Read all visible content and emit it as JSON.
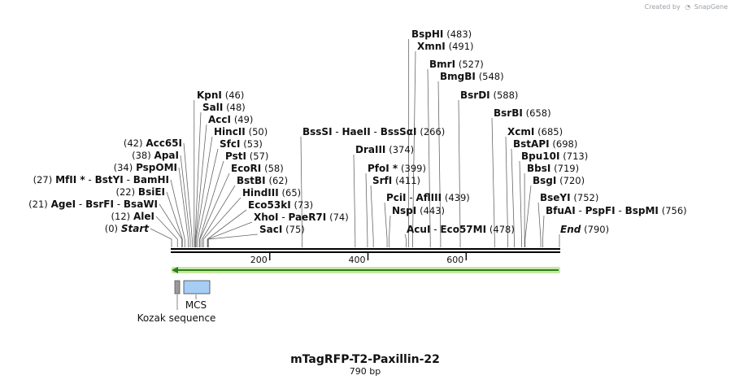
{
  "credit": {
    "prefix": "Created by",
    "brand": "SnapGene"
  },
  "plasmid": {
    "name": "mTagRFP-T2-Paxillin-22",
    "length_label": "790 bp",
    "length": 790
  },
  "colors": {
    "backbone": "#000000",
    "feature_arrow": "#2e7d1f",
    "feature_glow": "#c8e8a0",
    "kozak": "#999999",
    "mcs": "#a6cef5"
  },
  "ticks": [
    {
      "value": 200,
      "label": "200"
    },
    {
      "value": 400,
      "label": "400"
    },
    {
      "value": 600,
      "label": "600"
    }
  ],
  "features": [
    {
      "name": "Kozak sequence",
      "start": 1,
      "end": 10
    },
    {
      "name": "MCS",
      "start": 12,
      "end": 75
    }
  ],
  "left_sites": [
    {
      "parts": [
        "Start"
      ],
      "pos": 0,
      "pos_label": "(0)",
      "italic": true
    },
    {
      "parts": [
        "AleI"
      ],
      "pos": 12,
      "pos_label": "(12)"
    },
    {
      "parts": [
        "AgeI",
        "BsrFI",
        "BsaWI"
      ],
      "pos": 21,
      "pos_label": "(21)"
    },
    {
      "parts": [
        "BsiEI"
      ],
      "pos": 22,
      "pos_label": "(22)"
    },
    {
      "parts": [
        "MfII *",
        "BstYI",
        "BamHI"
      ],
      "pos": 27,
      "pos_label": "(27)"
    },
    {
      "parts": [
        "PspOMI"
      ],
      "pos": 34,
      "pos_label": "(34)"
    },
    {
      "parts": [
        "ApaI"
      ],
      "pos": 38,
      "pos_label": "(38)"
    },
    {
      "parts": [
        "Acc65I"
      ],
      "pos": 42,
      "pos_label": "(42)"
    }
  ],
  "right_sites": [
    {
      "parts": [
        "KpnI"
      ],
      "pos": 46,
      "pos_label": "(46)"
    },
    {
      "parts": [
        "SalI"
      ],
      "pos": 48,
      "pos_label": "(48)"
    },
    {
      "parts": [
        "AccI"
      ],
      "pos": 49,
      "pos_label": "(49)"
    },
    {
      "parts": [
        "HincII"
      ],
      "pos": 50,
      "pos_label": "(50)"
    },
    {
      "parts": [
        "SfcI"
      ],
      "pos": 53,
      "pos_label": "(53)"
    },
    {
      "parts": [
        "PstI"
      ],
      "pos": 57,
      "pos_label": "(57)"
    },
    {
      "parts": [
        "EcoRI"
      ],
      "pos": 58,
      "pos_label": "(58)"
    },
    {
      "parts": [
        "BstBI"
      ],
      "pos": 62,
      "pos_label": "(62)"
    },
    {
      "parts": [
        "HindIII"
      ],
      "pos": 65,
      "pos_label": "(65)"
    },
    {
      "parts": [
        "Eco53kI"
      ],
      "pos": 73,
      "pos_label": "(73)"
    },
    {
      "parts": [
        "XhoI",
        "PaeR7I"
      ],
      "pos": 74,
      "pos_label": "(74)"
    },
    {
      "parts": [
        "SacI"
      ],
      "pos": 75,
      "pos_label": "(75)"
    },
    {
      "parts": [
        "BssSI",
        "HaeII",
        "BssSαI"
      ],
      "pos": 266,
      "pos_label": "(266)"
    },
    {
      "parts": [
        "DraIII"
      ],
      "pos": 374,
      "pos_label": "(374)"
    },
    {
      "parts": [
        "PfoI *"
      ],
      "pos": 399,
      "pos_label": "(399)"
    },
    {
      "parts": [
        "SrfI"
      ],
      "pos": 411,
      "pos_label": "(411)"
    },
    {
      "parts": [
        "PciI",
        "AflIII"
      ],
      "pos": 439,
      "pos_label": "(439)"
    },
    {
      "parts": [
        "NspI"
      ],
      "pos": 443,
      "pos_label": "(443)"
    },
    {
      "parts": [
        "AcuI",
        "Eco57MI"
      ],
      "pos": 478,
      "pos_label": "(478)"
    },
    {
      "parts": [
        "BspHI"
      ],
      "pos": 483,
      "pos_label": "(483)"
    },
    {
      "parts": [
        "XmnI"
      ],
      "pos": 491,
      "pos_label": "(491)"
    },
    {
      "parts": [
        "BmrI"
      ],
      "pos": 527,
      "pos_label": "(527)"
    },
    {
      "parts": [
        "BmgBI"
      ],
      "pos": 548,
      "pos_label": "(548)"
    },
    {
      "parts": [
        "BsrDI"
      ],
      "pos": 588,
      "pos_label": "(588)"
    },
    {
      "parts": [
        "BsrBI"
      ],
      "pos": 658,
      "pos_label": "(658)"
    },
    {
      "parts": [
        "XcmI"
      ],
      "pos": 685,
      "pos_label": "(685)"
    },
    {
      "parts": [
        "BstAPI"
      ],
      "pos": 698,
      "pos_label": "(698)"
    },
    {
      "parts": [
        "Bpu10I"
      ],
      "pos": 713,
      "pos_label": "(713)"
    },
    {
      "parts": [
        "BbsI"
      ],
      "pos": 719,
      "pos_label": "(719)"
    },
    {
      "parts": [
        "BsgI"
      ],
      "pos": 720,
      "pos_label": "(720)"
    },
    {
      "parts": [
        "BseYI"
      ],
      "pos": 752,
      "pos_label": "(752)"
    },
    {
      "parts": [
        "BfuAI",
        "PspFI",
        "BspMI"
      ],
      "pos": 756,
      "pos_label": "(756)"
    },
    {
      "parts": [
        "End"
      ],
      "pos": 790,
      "pos_label": "(790)",
      "italic": true
    }
  ]
}
